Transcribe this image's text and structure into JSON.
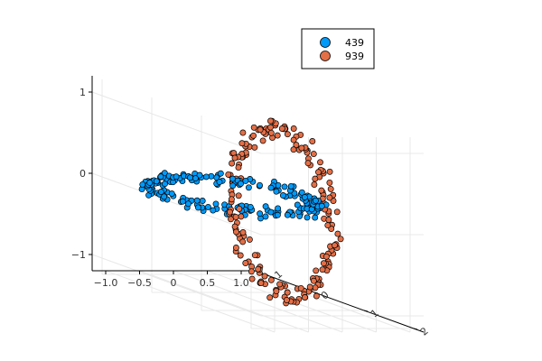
{
  "chart_data": {
    "type": "scatter",
    "title": "",
    "projection": "3d",
    "grid": true,
    "legend_position": "top-right",
    "axes": {
      "x": {
        "ticks": [
          "−1.0",
          "−0.5",
          "0",
          "0.5",
          "1.0"
        ],
        "range": [
          -1.2,
          1.2
        ]
      },
      "y": {
        "ticks": [
          "−1",
          "0",
          "1",
          "2"
        ],
        "range": [
          -1.2,
          2.2
        ]
      },
      "z": {
        "ticks": [
          "−1",
          "0",
          "1"
        ],
        "range": [
          -1.2,
          1.2
        ]
      }
    },
    "series": [
      {
        "name": "439",
        "color": "#009AFA",
        "shape": "horizontal ring in x-y plane",
        "center": [
          0,
          0,
          0
        ],
        "radius": 1.0,
        "points": 200
      },
      {
        "name": "939",
        "color": "#E36F47",
        "shape": "vertical ring in y-z plane",
        "center": [
          0,
          1,
          0
        ],
        "radius": 1.0,
        "points": 200
      }
    ]
  }
}
